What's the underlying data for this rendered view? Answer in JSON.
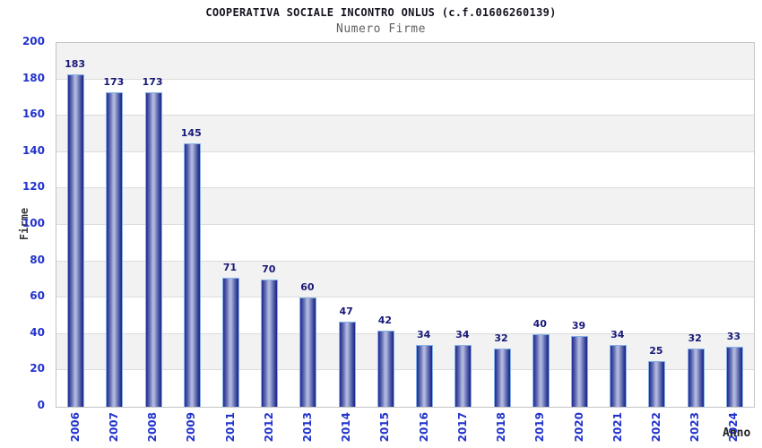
{
  "chart_data": {
    "type": "bar",
    "title": "COOPERATIVA SOCIALE INCONTRO ONLUS (c.f.01606260139)",
    "subtitle": "Numero Firme",
    "xlabel": "Anno",
    "ylabel": "Firme",
    "categories": [
      "2006",
      "2007",
      "2008",
      "2009",
      "2011",
      "2012",
      "2013",
      "2014",
      "2015",
      "2016",
      "2017",
      "2018",
      "2019",
      "2020",
      "2021",
      "2022",
      "2023",
      "2024"
    ],
    "values": [
      183,
      173,
      173,
      145,
      71,
      70,
      60,
      47,
      42,
      34,
      34,
      32,
      40,
      39,
      34,
      25,
      32,
      33
    ],
    "ylim": [
      0,
      200
    ],
    "yticks": [
      0,
      20,
      40,
      60,
      80,
      100,
      120,
      140,
      160,
      180,
      200
    ],
    "legend": "none",
    "grid": "horizontal-bands-alternating",
    "notes": "year 2010 absent from x axis",
    "colors": {
      "bar_dark": "#1d2687",
      "bar_light": "#b6bde2",
      "bar_border": "#85b3e8",
      "tick_label": "#2233cc",
      "value_label": "#181878",
      "band_gray": "#f2f2f2",
      "grid_line": "#dcdcdc",
      "plot_border": "#c4c4c4",
      "title_color": "#141420",
      "subtitle_color": "#606060",
      "axis_title_color": "#3a3a3a"
    }
  }
}
